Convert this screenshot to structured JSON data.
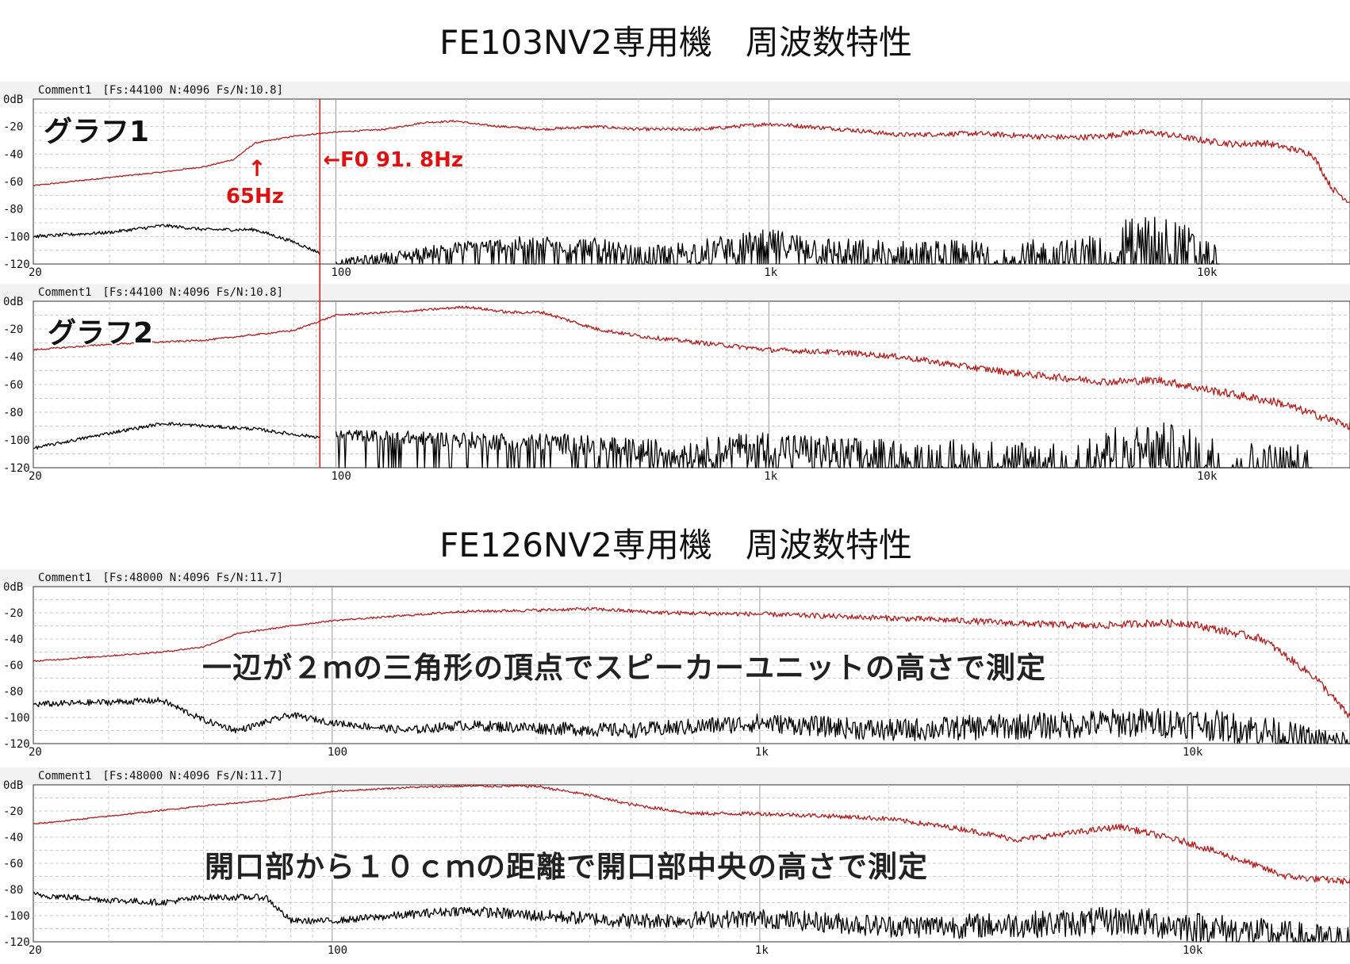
{
  "titles": {
    "top": "FE103NV2専用機　周波数特性",
    "bottom": "FE126NV2専用機　周波数特性"
  },
  "colors": {
    "response": "#b01e1e",
    "noise": "#000000",
    "grid": "#c8c8c8",
    "annotation": "#dd1111"
  },
  "chart_data": [
    {
      "type": "line",
      "header": "Comment1　[Fs:44100 N:4096 Fs/N:10.8]",
      "label": "グラフ1",
      "ylim": [
        -120,
        0
      ],
      "yticks": [
        "0dB",
        "-20",
        "-40",
        "-60",
        "-80",
        "-100",
        "-120"
      ],
      "xscale": "log",
      "xlim": [
        20,
        22000
      ],
      "xticks": [
        "20",
        "100",
        "1k",
        "10k"
      ],
      "grid": true,
      "annotations": [
        {
          "text": "←F0  91. 8Hz",
          "x": 91.8
        },
        {
          "arrow": "↑",
          "text": "65Hz",
          "x": 65
        }
      ],
      "series": [
        {
          "role": "response",
          "rough": 1.2,
          "x": [
            20,
            30,
            40,
            50,
            58,
            65,
            80,
            91.8,
            100,
            130,
            160,
            190,
            220,
            300,
            400,
            500,
            700,
            1000,
            1500,
            2000,
            3000,
            4000,
            5000,
            6000,
            7000,
            8000,
            10000,
            12000,
            14000,
            16000,
            18000,
            20000,
            22000
          ],
          "y": [
            -63,
            -57,
            -53,
            -49,
            -44,
            -32,
            -27,
            -25,
            -24,
            -22,
            -17,
            -16,
            -19,
            -22,
            -20,
            -22,
            -22,
            -18,
            -22,
            -26,
            -25,
            -27,
            -28,
            -27,
            -24,
            -25,
            -30,
            -33,
            -32,
            -36,
            -40,
            -65,
            -75
          ]
        },
        {
          "role": "noise",
          "rough": 3,
          "x": [
            20,
            30,
            40,
            50,
            65,
            80,
            91.8
          ],
          "y": [
            -100,
            -97,
            -92,
            -95,
            -95,
            -104,
            -112
          ]
        },
        {
          "role": "noise",
          "rough": 8,
          "dropFloor": true,
          "x": [
            100,
            200,
            300,
            400,
            500,
            700,
            1000,
            1500,
            2000,
            3000,
            5000,
            6000,
            7000,
            8000,
            9000,
            10000,
            11000
          ],
          "y": [
            -120,
            -108,
            -105,
            -108,
            -115,
            -110,
            -104,
            -112,
            -114,
            -115,
            -116,
            -108,
            -100,
            -100,
            -105,
            -115,
            -120
          ]
        }
      ]
    },
    {
      "type": "line",
      "header": "Comment1　[Fs:44100 N:4096 Fs/N:10.8]",
      "label": "グラフ2",
      "ylim": [
        -120,
        0
      ],
      "yticks": [
        "0dB",
        "-20",
        "-40",
        "-60",
        "-80",
        "-100",
        "-120"
      ],
      "xscale": "log",
      "xlim": [
        20,
        22000
      ],
      "xticks": [
        "20",
        "100",
        "1k",
        "10k"
      ],
      "grid": true,
      "annotations": [],
      "series": [
        {
          "role": "response",
          "rough": 1.5,
          "x": [
            20,
            30,
            50,
            80,
            100,
            150,
            200,
            250,
            300,
            400,
            500,
            700,
            1000,
            1500,
            2000,
            3000,
            4000,
            6000,
            8000,
            10000,
            15000,
            22000
          ],
          "y": [
            -35,
            -31,
            -28,
            -21,
            -10,
            -7,
            -4,
            -8,
            -8,
            -20,
            -25,
            -30,
            -35,
            -37,
            -40,
            -48,
            -53,
            -58,
            -57,
            -63,
            -73,
            -90
          ]
        },
        {
          "role": "noise",
          "rough": 3,
          "x": [
            20,
            30,
            40,
            50,
            65,
            80,
            91.8
          ],
          "y": [
            -106,
            -95,
            -88,
            -90,
            -92,
            -96,
            -98
          ]
        },
        {
          "role": "noise",
          "rough": 9,
          "dropFloor": true,
          "x": [
            100,
            200,
            300,
            400,
            500,
            700,
            1000,
            1500,
            2000,
            3000,
            5000,
            6000,
            7000,
            8000,
            9000,
            10000,
            12000,
            15000,
            18000
          ],
          "y": [
            -96,
            -100,
            -102,
            -104,
            -108,
            -108,
            -104,
            -110,
            -112,
            -114,
            -116,
            -108,
            -105,
            -104,
            -108,
            -112,
            -118,
            -120,
            -120
          ]
        }
      ]
    },
    {
      "type": "line",
      "header": "Comment1　[Fs:48000 N:4096 Fs/N:11.7]",
      "label": "一辺が２ｍの三角形の頂点でスピーカーユニットの高さで測定",
      "ylim": [
        -120,
        0
      ],
      "yticks": [
        "0dB",
        "-20",
        "-40",
        "-60",
        "-80",
        "-100",
        "-120"
      ],
      "xscale": "log",
      "xlim": [
        20,
        24000
      ],
      "xticks": [
        "20",
        "100",
        "1k",
        "10k"
      ],
      "grid": true,
      "annotations": [],
      "series": [
        {
          "role": "response",
          "rough": 1.5,
          "x": [
            20,
            40,
            50,
            60,
            80,
            100,
            150,
            200,
            300,
            400,
            600,
            1000,
            2000,
            3000,
            4000,
            6000,
            8000,
            10000,
            15000,
            20000,
            24000
          ],
          "y": [
            -57,
            -50,
            -46,
            -36,
            -30,
            -26,
            -22,
            -19,
            -18,
            -17,
            -20,
            -21,
            -24,
            -26,
            -28,
            -30,
            -28,
            -28,
            -40,
            -70,
            -100
          ]
        },
        {
          "role": "noise",
          "rough": 6,
          "x": [
            20,
            40,
            50,
            60,
            80,
            100,
            150,
            200,
            300,
            500,
            1000,
            2000,
            3000,
            5000,
            7000,
            10000,
            15000,
            20000,
            24000
          ],
          "y": [
            -90,
            -87,
            -102,
            -110,
            -98,
            -104,
            -110,
            -106,
            -108,
            -110,
            -104,
            -110,
            -108,
            -106,
            -104,
            -104,
            -110,
            -120,
            -120
          ]
        }
      ]
    },
    {
      "type": "line",
      "header": "Comment1　[Fs:48000 N:4096 Fs/N:11.7]",
      "label": "開口部から１０ｃｍの距離で開口部中央の高さで測定",
      "ylim": [
        -120,
        0
      ],
      "yticks": [
        "0dB",
        "-20",
        "-40",
        "-60",
        "-80",
        "-100",
        "-120"
      ],
      "xscale": "log",
      "xlim": [
        20,
        24000
      ],
      "xticks": [
        "20",
        "100",
        "1k",
        "10k"
      ],
      "grid": true,
      "annotations": [],
      "series": [
        {
          "role": "response",
          "rough": 1.3,
          "x": [
            20,
            30,
            50,
            70,
            100,
            150,
            200,
            300,
            400,
            500,
            700,
            1000,
            1500,
            2000,
            3000,
            4000,
            5000,
            7000,
            10000,
            14000,
            17000,
            20000,
            24000
          ],
          "y": [
            -30,
            -24,
            -16,
            -12,
            -5,
            -2,
            -1,
            -1,
            -8,
            -15,
            -22,
            -22,
            -24,
            -26,
            -34,
            -42,
            -38,
            -32,
            -44,
            -60,
            -70,
            -72,
            -74
          ]
        },
        {
          "role": "noise",
          "rough": 6,
          "x": [
            20,
            30,
            40,
            50,
            70,
            80,
            100,
            200,
            300,
            500,
            1000,
            2000,
            3000,
            5000,
            7000,
            10000,
            15000,
            20000,
            24000
          ],
          "y": [
            -84,
            -88,
            -90,
            -86,
            -86,
            -104,
            -104,
            -96,
            -100,
            -104,
            -102,
            -108,
            -108,
            -106,
            -104,
            -108,
            -114,
            -118,
            -120
          ]
        }
      ]
    }
  ]
}
